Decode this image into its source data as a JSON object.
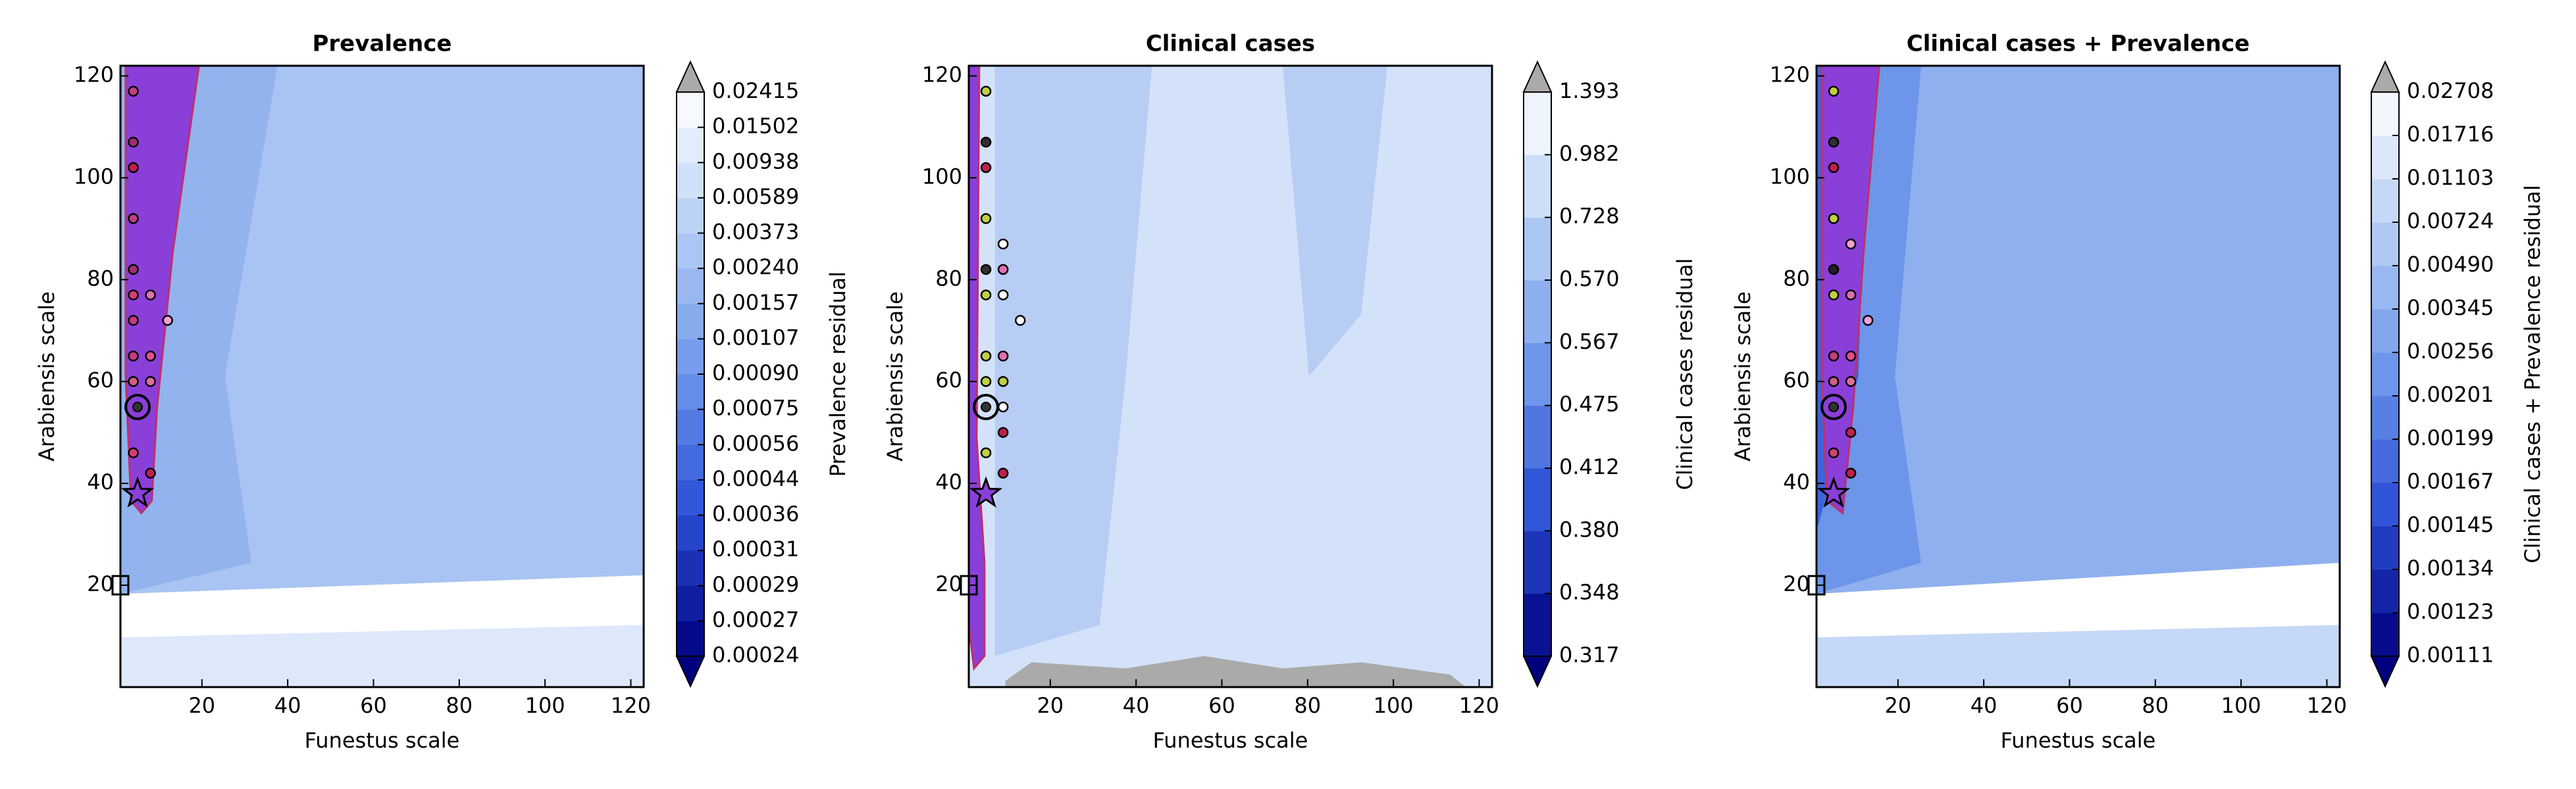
{
  "chart_data": [
    {
      "type": "contour",
      "title": "Prevalence",
      "xlabel": "Funestus scale",
      "ylabel": "Arabiensis scale",
      "xlim": [
        1,
        123
      ],
      "ylim": [
        0,
        122
      ],
      "xticks": [
        20,
        40,
        60,
        80,
        100,
        120
      ],
      "yticks": [
        20,
        40,
        60,
        80,
        100,
        120
      ],
      "colorbar_label": "Prevalence residual",
      "levels": [
        0.00024,
        0.00027,
        0.00029,
        0.00031,
        0.00036,
        0.00044,
        0.00056,
        0.00075,
        {
          "value": 0.0009,
          "label": "0.00090"
        },
        0.00107,
        0.00157,
        {
          "value": 0.0024,
          "label": "0.00240"
        },
        0.00373,
        0.00589,
        0.00938,
        0.01502,
        0.02415
      ],
      "cmap": [
        "#00007f",
        "#2a4fd6",
        "#6d96ea",
        "#b4cdf5",
        "#ffffff"
      ],
      "over_color": "#aaaaaa",
      "points": {
        "x": [
          4,
          4,
          4,
          4,
          4,
          4,
          4,
          8,
          12,
          4,
          8,
          4,
          8,
          4,
          8
        ],
        "y": [
          117,
          107,
          102,
          92,
          82,
          77,
          72,
          77,
          72,
          65,
          65,
          60,
          60,
          46,
          42
        ],
        "colors": [
          "#c04080",
          "#a03070",
          "#c02050",
          "#c04080",
          "#a03070",
          "#d04070",
          "#c04080",
          "#e070b0",
          "#f0a0d0",
          "#c04080",
          "#e05090",
          "#d06080",
          "#e070a0",
          "#d04070",
          "#c02050"
        ]
      },
      "star": {
        "x": 5,
        "y": 38
      },
      "circle": {
        "x": 5,
        "y": 55
      },
      "square": {
        "x": 1,
        "y": 20
      }
    },
    {
      "type": "contour",
      "title": "Clinical cases",
      "xlabel": "Funestus scale",
      "ylabel": "Arabiensis scale",
      "xlim": [
        1,
        123
      ],
      "ylim": [
        0,
        122
      ],
      "xticks": [
        20,
        40,
        60,
        80,
        100,
        120
      ],
      "yticks": [
        20,
        40,
        60,
        80,
        100,
        120
      ],
      "colorbar_label": "Clinical cases residual",
      "levels": [
        0.317,
        0.348,
        {
          "value": 0.38,
          "label": "0.380"
        },
        0.412,
        0.475,
        0.567,
        {
          "value": 0.57,
          "label": "0.570"
        },
        0.728,
        0.982,
        1.393
      ],
      "cmap": [
        "#00007f",
        "#2a4fd6",
        "#6d96ea",
        "#b4cdf5",
        "#ffffff"
      ],
      "over_color": "#aaaaaa",
      "points": {
        "x": [
          5,
          5,
          5,
          5,
          5,
          9,
          5,
          9,
          9,
          13,
          5,
          9,
          5,
          9,
          9,
          9,
          5,
          9
        ],
        "y": [
          117,
          107,
          102,
          92,
          82,
          87,
          77,
          77,
          82,
          72,
          65,
          65,
          60,
          60,
          55,
          50,
          46,
          42
        ],
        "colors": [
          "#c0d040",
          "#303030",
          "#c02050",
          "#c0d040",
          "#303030",
          "#ffffff",
          "#c0d040",
          "#ffffff",
          "#e070b0",
          "#ffffff",
          "#c0d040",
          "#e070b0",
          "#c0d040",
          "#c0d040",
          "#ffffff",
          "#c02050",
          "#c0d040",
          "#c02050"
        ]
      },
      "star": {
        "x": 5,
        "y": 38
      },
      "circle": {
        "x": 5,
        "y": 55
      },
      "square": {
        "x": 1,
        "y": 20
      }
    },
    {
      "type": "contour",
      "title": "Clinical cases + Prevalence",
      "xlabel": "Funestus scale",
      "ylabel": "Arabiensis scale",
      "xlim": [
        1,
        123
      ],
      "ylim": [
        0,
        122
      ],
      "xticks": [
        20,
        40,
        60,
        80,
        100,
        120
      ],
      "yticks": [
        20,
        40,
        60,
        80,
        100,
        120
      ],
      "colorbar_label": "Clinical cases + Prevalence residual",
      "levels": [
        0.00111,
        0.00123,
        0.00134,
        0.00145,
        0.00167,
        0.00199,
        0.00201,
        0.00256,
        0.00345,
        {
          "value": 0.0049,
          "label": "0.00490"
        },
        0.00724,
        0.01103,
        0.01716,
        0.02708
      ],
      "cmap": [
        "#00007f",
        "#2a4fd6",
        "#6d96ea",
        "#b4cdf5",
        "#ffffff"
      ],
      "over_color": "#aaaaaa",
      "points": {
        "x": [
          5,
          5,
          5,
          5,
          5,
          9,
          5,
          9,
          13,
          5,
          9,
          5,
          9,
          9,
          5,
          9
        ],
        "y": [
          117,
          107,
          102,
          92,
          82,
          87,
          77,
          77,
          72,
          65,
          65,
          60,
          60,
          50,
          46,
          42
        ],
        "colors": [
          "#c0d040",
          "#303030",
          "#c02050",
          "#c0d040",
          "#202020",
          "#f0a0d0",
          "#c0d040",
          "#e070b0",
          "#f0a0d0",
          "#c04080",
          "#e05090",
          "#d06080",
          "#e070a0",
          "#c02050",
          "#d04070",
          "#c02050"
        ]
      },
      "star": {
        "x": 5,
        "y": 38
      },
      "circle": {
        "x": 5,
        "y": 55
      },
      "square": {
        "x": 1,
        "y": 20
      }
    }
  ]
}
